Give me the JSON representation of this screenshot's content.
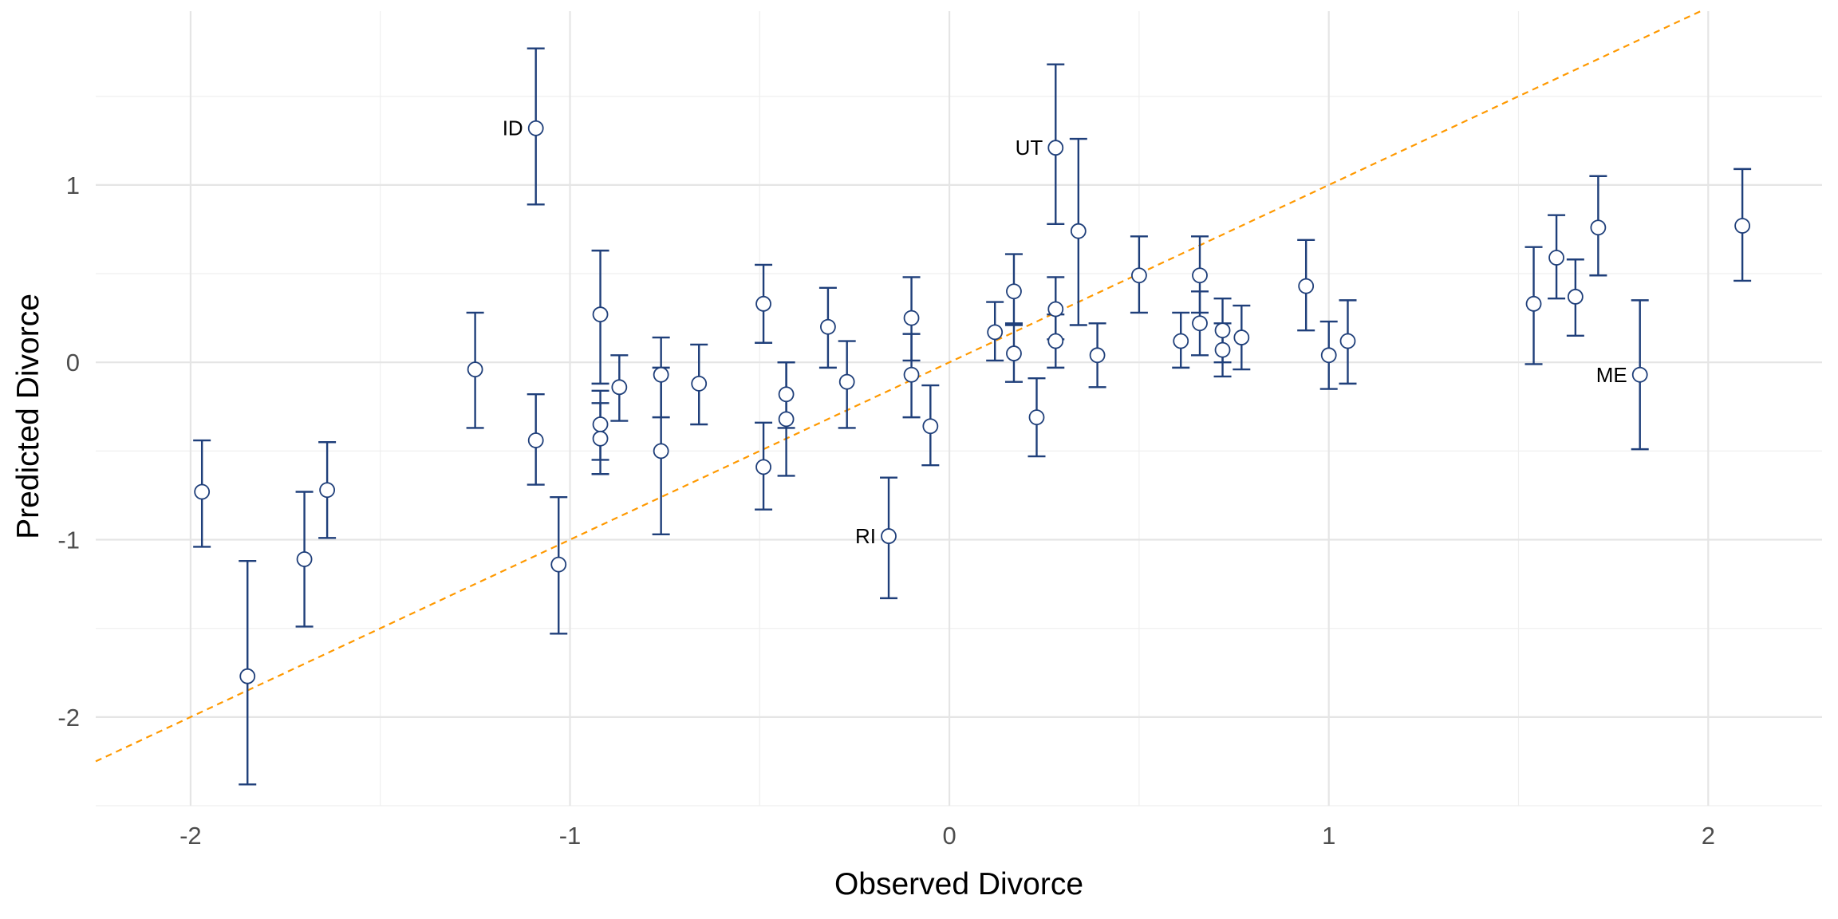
{
  "chart_data": {
    "type": "scatter",
    "xlabel": "Observed Divorce",
    "ylabel": "Predicted Divorce",
    "xlim": [
      -2.25,
      2.3
    ],
    "ylim": [
      -2.5,
      1.98
    ],
    "xticks": [
      -2,
      -1,
      0,
      1,
      2
    ],
    "yticks": [
      -2,
      -1,
      0,
      1
    ],
    "x_tick_labels": [
      "-2",
      "-1",
      "0",
      "1",
      "2"
    ],
    "y_tick_labels": [
      "-2",
      "-1",
      "0",
      "1"
    ],
    "grid": true,
    "reference_line": {
      "slope": 1,
      "intercept": 0,
      "style": "dashed"
    },
    "colors": {
      "points": "#1f3f7a",
      "reference_line": "#ff9900",
      "grid": "#e5e5e5"
    },
    "points": [
      {
        "x": -1.97,
        "y": -0.73,
        "lo": -1.04,
        "hi": -0.44
      },
      {
        "x": -1.85,
        "y": -1.77,
        "lo": -2.38,
        "hi": -1.12
      },
      {
        "x": -1.7,
        "y": -1.11,
        "lo": -1.49,
        "hi": -0.73
      },
      {
        "x": -1.64,
        "y": -0.72,
        "lo": -0.99,
        "hi": -0.45
      },
      {
        "x": -1.25,
        "y": -0.04,
        "lo": -0.37,
        "hi": 0.28
      },
      {
        "x": -1.09,
        "y": 1.32,
        "lo": 0.89,
        "hi": 1.77,
        "label": "ID"
      },
      {
        "x": -1.09,
        "y": -0.44,
        "lo": -0.69,
        "hi": -0.18
      },
      {
        "x": -1.03,
        "y": -1.14,
        "lo": -1.53,
        "hi": -0.76
      },
      {
        "x": -0.92,
        "y": 0.27,
        "lo": -0.12,
        "hi": 0.63
      },
      {
        "x": -0.92,
        "y": -0.35,
        "lo": -0.55,
        "hi": -0.16
      },
      {
        "x": -0.92,
        "y": -0.43,
        "lo": -0.63,
        "hi": -0.23
      },
      {
        "x": -0.87,
        "y": -0.14,
        "lo": -0.33,
        "hi": 0.04
      },
      {
        "x": -0.76,
        "y": -0.07,
        "lo": -0.31,
        "hi": 0.14
      },
      {
        "x": -0.76,
        "y": -0.5,
        "lo": -0.97,
        "hi": -0.03
      },
      {
        "x": -0.66,
        "y": -0.12,
        "lo": -0.35,
        "hi": 0.1
      },
      {
        "x": -0.49,
        "y": 0.33,
        "lo": 0.11,
        "hi": 0.55
      },
      {
        "x": -0.49,
        "y": -0.59,
        "lo": -0.83,
        "hi": -0.34
      },
      {
        "x": -0.43,
        "y": -0.18,
        "lo": -0.37,
        "hi": 0.0
      },
      {
        "x": -0.43,
        "y": -0.32,
        "lo": -0.64,
        "hi": 0.0
      },
      {
        "x": -0.32,
        "y": 0.2,
        "lo": -0.03,
        "hi": 0.42
      },
      {
        "x": -0.27,
        "y": -0.11,
        "lo": -0.37,
        "hi": 0.12
      },
      {
        "x": -0.16,
        "y": -0.98,
        "lo": -1.33,
        "hi": -0.65,
        "label": "RI"
      },
      {
        "x": -0.1,
        "y": 0.25,
        "lo": 0.01,
        "hi": 0.48
      },
      {
        "x": -0.1,
        "y": -0.07,
        "lo": -0.31,
        "hi": 0.16
      },
      {
        "x": -0.05,
        "y": -0.36,
        "lo": -0.58,
        "hi": -0.13
      },
      {
        "x": 0.12,
        "y": 0.17,
        "lo": 0.01,
        "hi": 0.34
      },
      {
        "x": 0.17,
        "y": 0.4,
        "lo": 0.21,
        "hi": 0.61
      },
      {
        "x": 0.17,
        "y": 0.05,
        "lo": -0.11,
        "hi": 0.22
      },
      {
        "x": 0.23,
        "y": -0.31,
        "lo": -0.53,
        "hi": -0.09
      },
      {
        "x": 0.28,
        "y": 1.21,
        "lo": 0.78,
        "hi": 1.68,
        "label": "UT"
      },
      {
        "x": 0.28,
        "y": 0.3,
        "lo": 0.13,
        "hi": 0.48
      },
      {
        "x": 0.28,
        "y": 0.12,
        "lo": -0.03,
        "hi": 0.27
      },
      {
        "x": 0.34,
        "y": 0.74,
        "lo": 0.21,
        "hi": 1.26
      },
      {
        "x": 0.39,
        "y": 0.04,
        "lo": -0.14,
        "hi": 0.22
      },
      {
        "x": 0.5,
        "y": 0.49,
        "lo": 0.28,
        "hi": 0.71
      },
      {
        "x": 0.61,
        "y": 0.12,
        "lo": -0.03,
        "hi": 0.28
      },
      {
        "x": 0.66,
        "y": 0.49,
        "lo": 0.28,
        "hi": 0.71
      },
      {
        "x": 0.66,
        "y": 0.22,
        "lo": 0.04,
        "hi": 0.4
      },
      {
        "x": 0.72,
        "y": 0.18,
        "lo": 0.0,
        "hi": 0.36
      },
      {
        "x": 0.72,
        "y": 0.07,
        "lo": -0.08,
        "hi": 0.22
      },
      {
        "x": 0.77,
        "y": 0.14,
        "lo": -0.04,
        "hi": 0.32
      },
      {
        "x": 0.94,
        "y": 0.43,
        "lo": 0.18,
        "hi": 0.69
      },
      {
        "x": 1.0,
        "y": 0.04,
        "lo": -0.15,
        "hi": 0.23
      },
      {
        "x": 1.05,
        "y": 0.12,
        "lo": -0.12,
        "hi": 0.35
      },
      {
        "x": 1.54,
        "y": 0.33,
        "lo": -0.01,
        "hi": 0.65
      },
      {
        "x": 1.6,
        "y": 0.59,
        "lo": 0.36,
        "hi": 0.83
      },
      {
        "x": 1.65,
        "y": 0.37,
        "lo": 0.15,
        "hi": 0.58
      },
      {
        "x": 1.71,
        "y": 0.76,
        "lo": 0.49,
        "hi": 1.05
      },
      {
        "x": 1.82,
        "y": -0.07,
        "lo": -0.49,
        "hi": 0.35,
        "label": "ME"
      },
      {
        "x": 2.09,
        "y": 0.77,
        "lo": 0.46,
        "hi": 1.09
      }
    ]
  }
}
